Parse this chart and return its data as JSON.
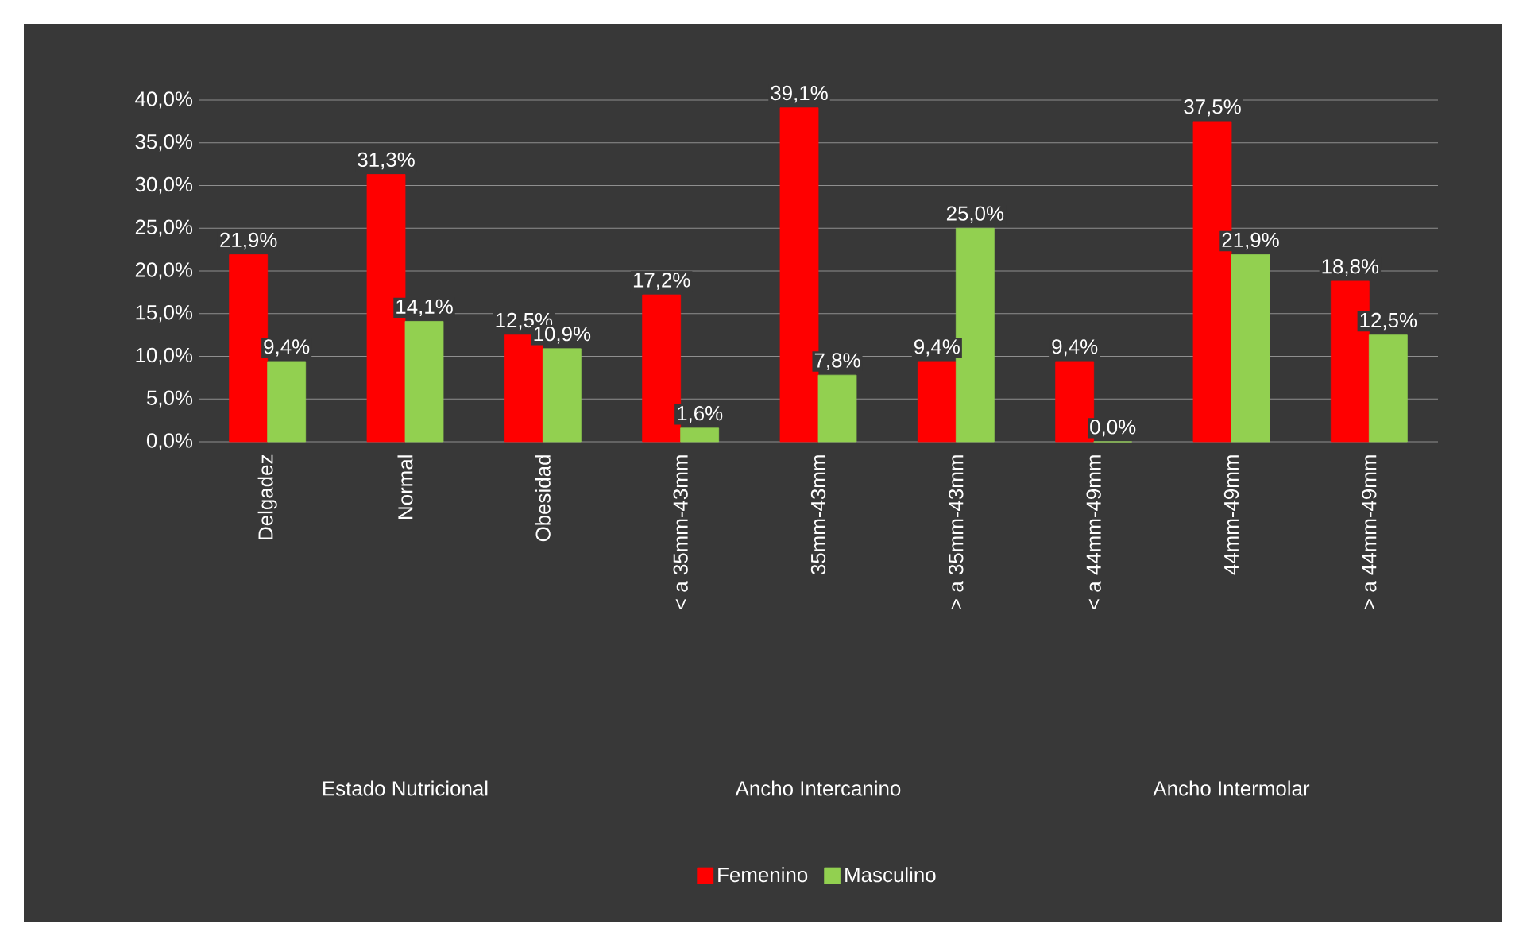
{
  "chart_data": {
    "type": "bar",
    "categories": [
      "Delgadez",
      "Normal",
      "Obesidad",
      "< a 35mm-43mm",
      "35mm-43mm",
      "> a 35mm-43mm",
      "< a 44mm-49mm",
      "44mm-49mm",
      "> a 44mm-49mm"
    ],
    "series": [
      {
        "name": "Femenino",
        "color": "#ff0000",
        "values": [
          21.9,
          31.3,
          12.5,
          17.2,
          39.1,
          9.4,
          9.4,
          37.5,
          18.8
        ],
        "value_labels": [
          "21,9%",
          "31,3%",
          "12,5%",
          "17,2%",
          "39,1%",
          "9,4%",
          "9,4%",
          "37,5%",
          "18,8%"
        ]
      },
      {
        "name": "Masculino",
        "color": "#92d050",
        "values": [
          9.4,
          14.1,
          10.9,
          1.6,
          7.8,
          25.0,
          0.0,
          21.9,
          12.5
        ],
        "value_labels": [
          "9,4%",
          "14,1%",
          "10,9%",
          "1,6%",
          "7,8%",
          "25,0%",
          "0,0%",
          "21,9%",
          "12,5%"
        ]
      }
    ],
    "ylim": [
      0,
      40
    ],
    "yticks": [
      {
        "value": 0,
        "label": "0,0%"
      },
      {
        "value": 5,
        "label": "5,0%"
      },
      {
        "value": 10,
        "label": "10,0%"
      },
      {
        "value": 15,
        "label": "15,0%"
      },
      {
        "value": 20,
        "label": "20,0%"
      },
      {
        "value": 25,
        "label": "25,0%"
      },
      {
        "value": 30,
        "label": "30,0%"
      },
      {
        "value": 35,
        "label": "35,0%"
      },
      {
        "value": 40,
        "label": "40,0%"
      }
    ],
    "grid": "y",
    "legend": "bottom",
    "annotations": [
      "Estado Nutricional",
      "Ancho Intercanino",
      "Ancho Intermolar"
    ]
  }
}
